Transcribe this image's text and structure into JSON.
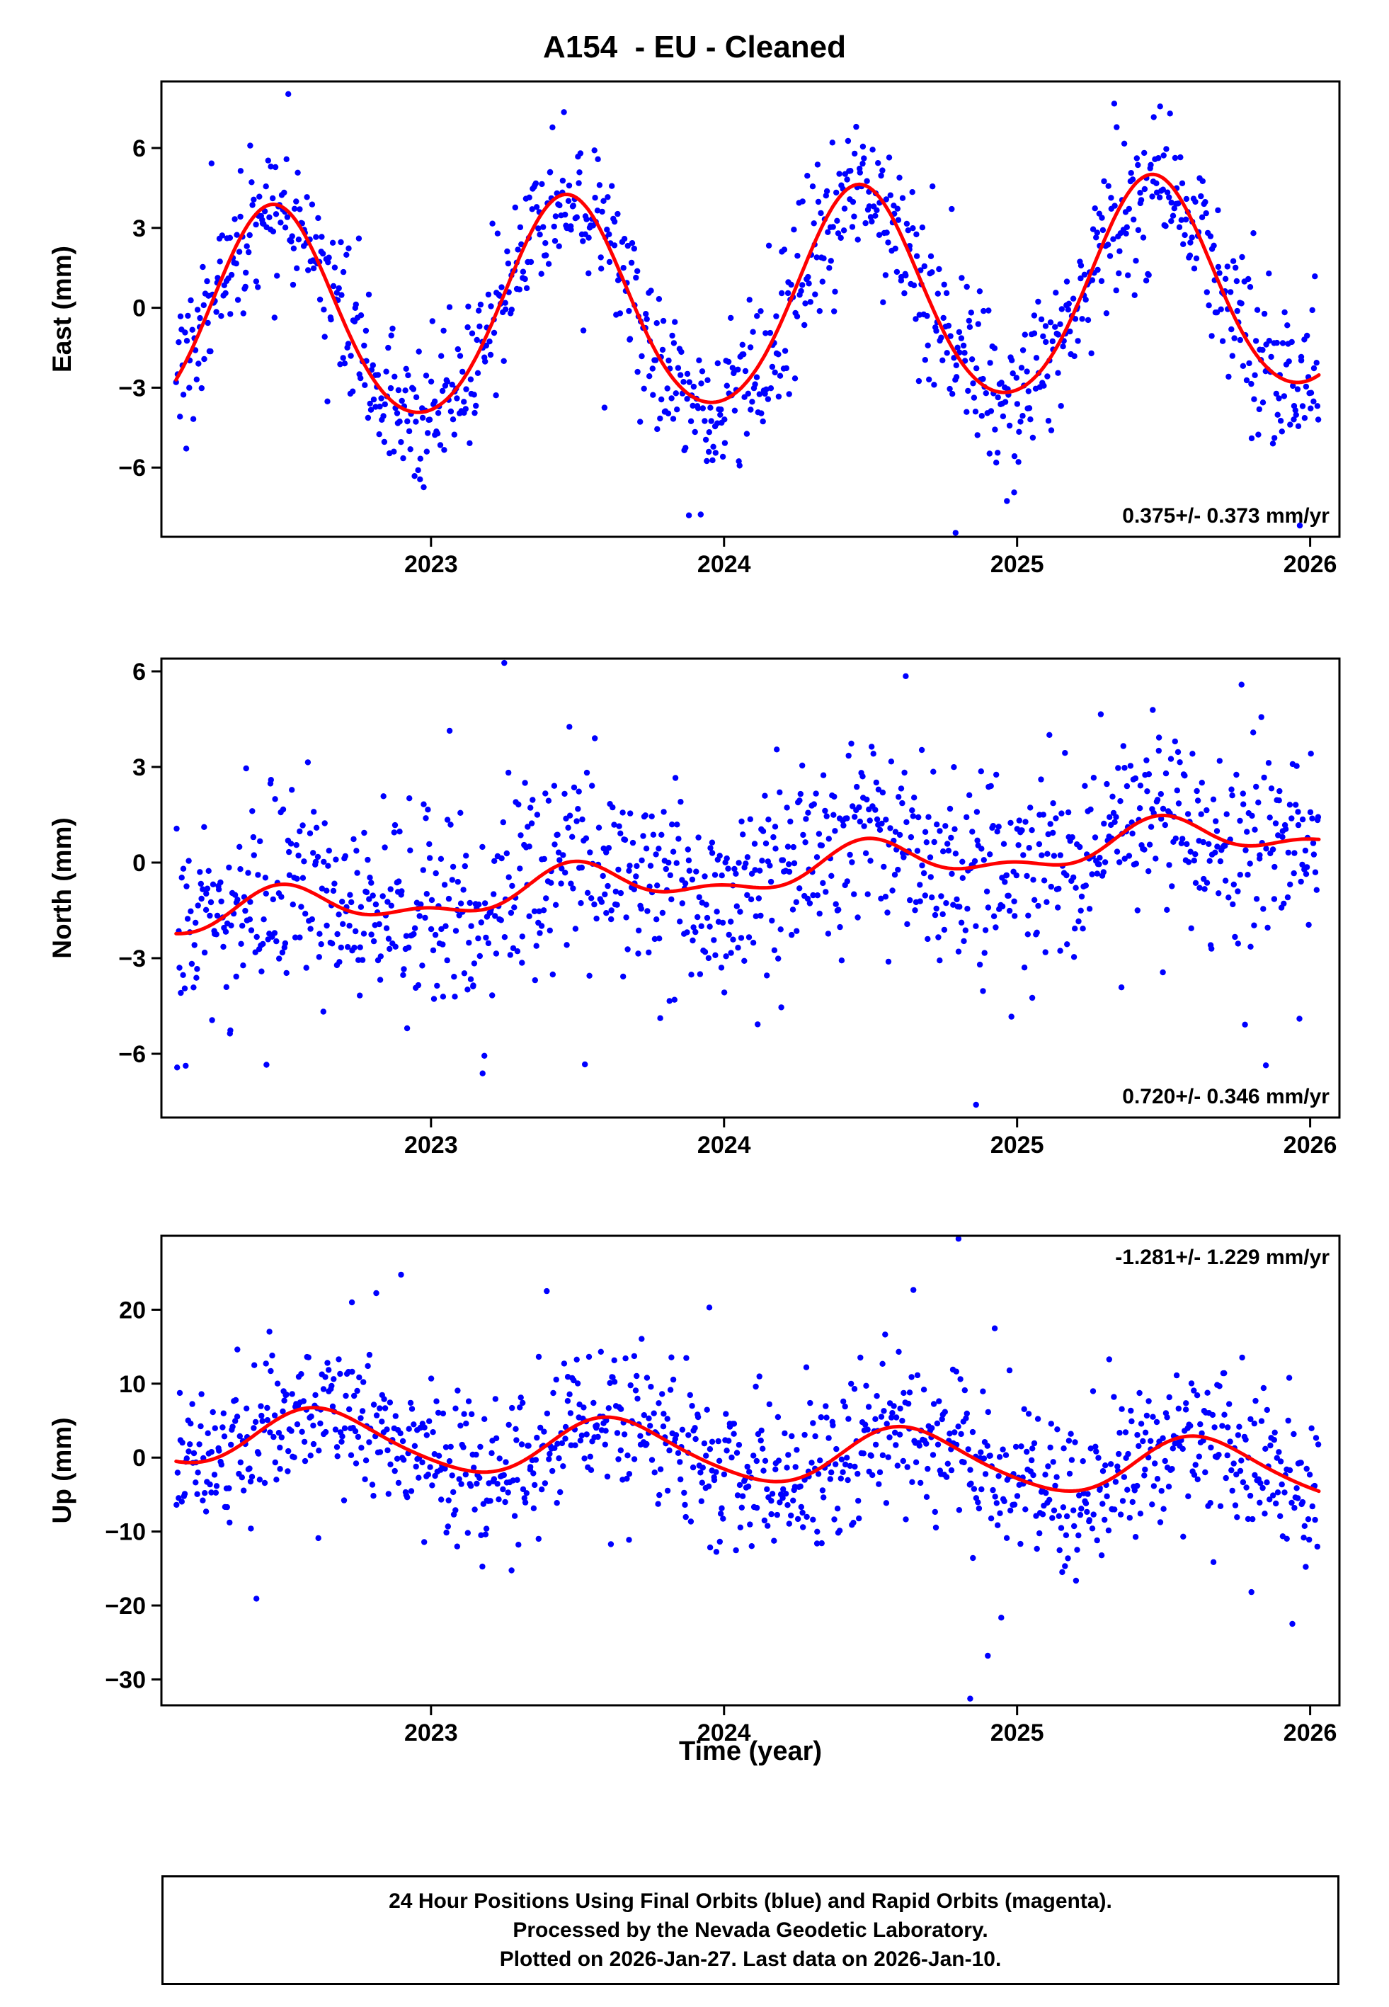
{
  "title": "A154  - EU - Cleaned",
  "xlabel": "Time (year)",
  "colors": {
    "points": "#0000ff",
    "fit_line": "#ff0000",
    "frame": "#000000",
    "text": "#000000"
  },
  "footer": {
    "line1": "24 Hour Positions Using Final Orbits (blue) and Rapid Orbits (magenta).",
    "line2": "Processed by the Nevada Geodetic Laboratory.",
    "line3": "Plotted on 2026-Jan-27. Last data on 2026-Jan-10."
  },
  "chart_data": [
    {
      "type": "scatter",
      "name": "east",
      "ylabel": "East (mm)",
      "annotation": "0.375+/- 0.373 mm/yr",
      "annotation_corner": "bottom-right",
      "x_range": [
        2022.08,
        2026.1
      ],
      "data_range": [
        2022.13,
        2026.03
      ],
      "xticks": [
        2023,
        2024,
        2025,
        2026
      ],
      "yticks": [
        -6,
        -3,
        0,
        3,
        6
      ],
      "ylim": [
        -8.6,
        8.5
      ],
      "n_points": 1100,
      "noise_sigma": 1.35,
      "seed": 7,
      "fit_model": {
        "tref": 2024.1,
        "mean": 0.15,
        "trend_mm_per_yr": 0.375,
        "annual_amp": 4.0,
        "annual_peak": 0.46,
        "semiannual_amp": 0.35,
        "semiannual_peak": 0.46
      },
      "outliers": [
        [
          2024.79,
          -8.45
        ]
      ]
    },
    {
      "type": "scatter",
      "name": "north",
      "ylabel": "North (mm)",
      "annotation": "0.720+/- 0.346 mm/yr",
      "annotation_corner": "bottom-right",
      "x_range": [
        2022.08,
        2026.1
      ],
      "data_range": [
        2022.13,
        2026.03
      ],
      "xticks": [
        2023,
        2024,
        2025,
        2026
      ],
      "yticks": [
        -6,
        -3,
        0,
        3,
        6
      ],
      "ylim": [
        -8.0,
        6.4
      ],
      "n_points": 1100,
      "noise_sigma": 1.5,
      "seed": 13,
      "fit_model": {
        "tref": 2024.1,
        "mean": -0.35,
        "trend_mm_per_yr": 0.72,
        "annual_amp": 0.55,
        "annual_peak": 0.5,
        "semiannual_amp": 0.28,
        "semiannual_peak": 0.48
      },
      "outliers": [
        [
          2024.86,
          -7.6
        ],
        [
          2024.62,
          5.85
        ]
      ]
    },
    {
      "type": "scatter",
      "name": "up",
      "ylabel": "Up (mm)",
      "annotation": "-1.281+/- 1.229 mm/yr",
      "annotation_corner": "top-right",
      "x_range": [
        2022.08,
        2026.1
      ],
      "data_range": [
        2022.13,
        2026.03
      ],
      "xticks": [
        2023,
        2024,
        2025,
        2026
      ],
      "yticks": [
        -30,
        -20,
        -10,
        0,
        10,
        20
      ],
      "ylim": [
        -33.5,
        30.0
      ],
      "n_points": 1100,
      "noise_sigma": 5.0,
      "seed": 21,
      "fit_model": {
        "tref": 2024.1,
        "mean": 0.6,
        "trend_mm_per_yr": -1.281,
        "annual_amp": 3.9,
        "annual_peak": 0.63,
        "semiannual_amp": 0.5,
        "semiannual_peak": 0.55
      },
      "outliers": [
        [
          2024.8,
          29.6
        ],
        [
          2024.84,
          -32.6
        ],
        [
          2024.9,
          -26.8
        ],
        [
          2023.95,
          20.3
        ],
        [
          2022.73,
          21.0
        ]
      ]
    }
  ]
}
